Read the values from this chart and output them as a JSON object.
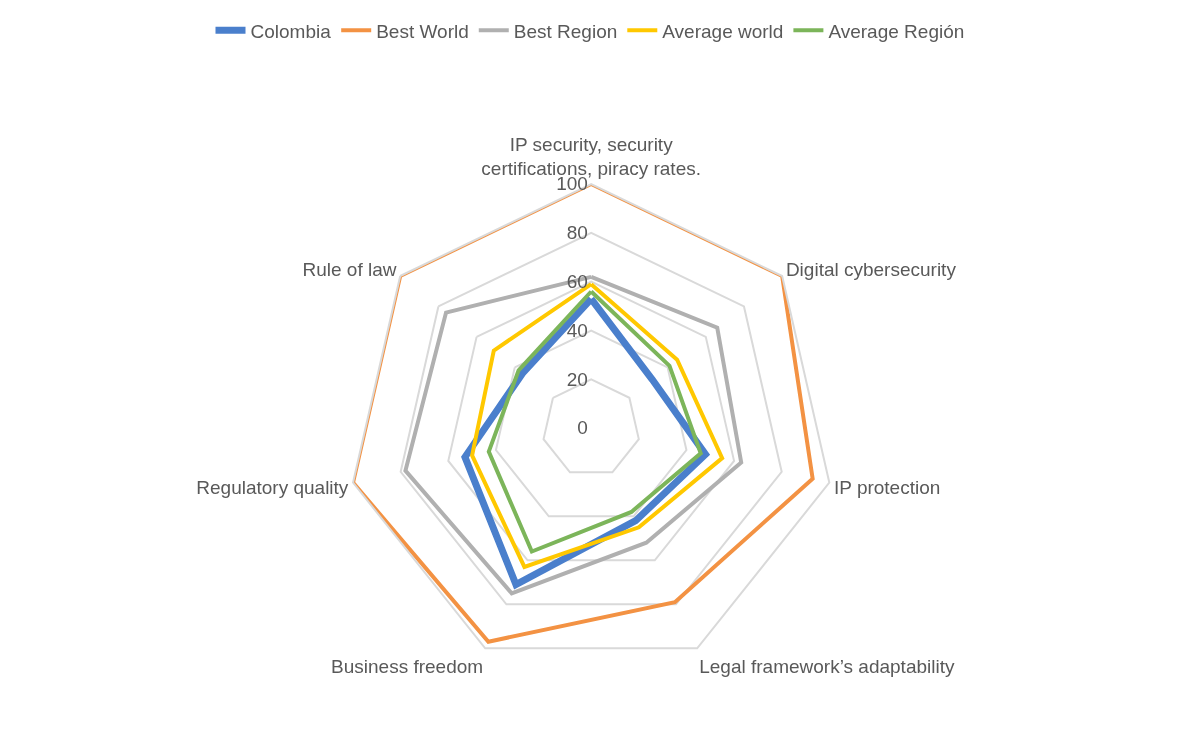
{
  "chart_data": {
    "type": "radar",
    "categories": [
      "IP security, security certifications, piracy rates.",
      "Digital cybersecurity",
      "IP protection",
      "Legal framework’s adaptability",
      "Business freedom",
      "Regulatory quality",
      "Rule of law"
    ],
    "series": [
      {
        "name": "Colombia",
        "color": "#4a7fcc",
        "values": [
          53,
          32,
          48,
          42,
          71,
          53,
          36
        ]
      },
      {
        "name": "Best World",
        "color": "#f39243",
        "values": [
          100,
          100,
          93,
          79,
          97,
          100,
          100
        ]
      },
      {
        "name": "Best Region",
        "color": "#b0b0b0",
        "values": [
          62,
          66,
          63,
          52,
          75,
          78,
          76
        ]
      },
      {
        "name": "Average world",
        "color": "#ffc800",
        "values": [
          59,
          45,
          55,
          45,
          63,
          50,
          51
        ]
      },
      {
        "name": "Average Región",
        "color": "#7cb55a",
        "values": [
          56,
          41,
          46,
          38,
          56,
          43,
          38
        ]
      }
    ],
    "ylim": [
      0,
      100
    ],
    "yticks": [
      0,
      20,
      40,
      60,
      80,
      100
    ],
    "grid": true,
    "legend": "top",
    "marker": "none",
    "line_style": "solid"
  }
}
